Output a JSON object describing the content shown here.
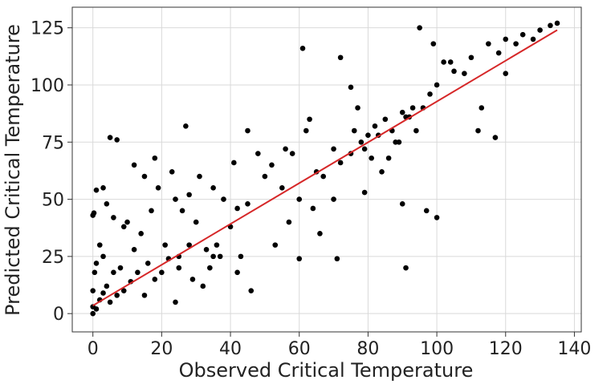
{
  "chart_data": {
    "type": "scatter",
    "title": "",
    "xlabel": "Observed Critical Temperature",
    "ylabel": "Predicted Critical Temperature",
    "xlim": [
      -6,
      142
    ],
    "ylim": [
      -8,
      134
    ],
    "xticks": [
      0,
      20,
      40,
      60,
      80,
      100,
      120,
      140
    ],
    "yticks": [
      0,
      25,
      50,
      75,
      100,
      125
    ],
    "grid": true,
    "legend": "none",
    "colors": {
      "points": "#000000",
      "fit_line": "#d62728",
      "grid": "#d9d9d9",
      "frame": "#333333"
    },
    "series": [
      {
        "x": [
          0,
          0,
          1,
          0.5,
          2,
          3,
          4,
          5,
          7,
          9,
          11,
          1,
          3,
          6,
          2,
          0,
          1,
          4,
          8,
          10,
          12,
          14,
          16,
          18,
          20,
          22,
          25,
          28,
          15,
          17,
          19,
          21,
          23,
          26,
          30,
          33,
          36,
          40,
          9,
          13,
          24,
          27,
          31,
          35,
          38,
          42,
          45,
          50,
          5,
          15,
          25,
          35,
          45,
          52,
          58,
          62,
          55,
          48,
          60,
          65,
          70,
          67,
          72,
          75,
          78,
          80,
          82,
          85,
          87,
          90,
          92,
          88,
          76,
          84,
          86,
          89,
          91,
          93,
          79,
          83,
          81,
          77,
          94,
          96,
          98,
          100,
          102,
          105,
          108,
          110,
          115,
          118,
          120,
          123,
          125,
          128,
          130,
          133,
          135,
          120,
          112,
          117,
          113,
          104,
          99,
          95,
          61,
          72,
          75,
          60,
          100,
          97,
          79,
          90,
          91,
          53,
          57,
          64,
          66,
          70,
          71,
          46,
          42,
          43,
          37,
          34,
          32,
          29,
          24,
          7,
          0,
          0.3,
          3,
          6,
          12,
          18,
          28,
          41,
          56,
          63
        ],
        "y": [
          3,
          10,
          2,
          18,
          6,
          9,
          12,
          5,
          8,
          10,
          14,
          22,
          25,
          18,
          30,
          43,
          54,
          48,
          20,
          40,
          28,
          35,
          22,
          15,
          18,
          24,
          25,
          30,
          60,
          45,
          55,
          30,
          62,
          45,
          40,
          28,
          30,
          38,
          38,
          18,
          50,
          82,
          60,
          55,
          50,
          46,
          80,
          60,
          77,
          8,
          20,
          25,
          48,
          65,
          70,
          80,
          55,
          70,
          50,
          62,
          72,
          60,
          66,
          70,
          75,
          78,
          82,
          85,
          80,
          88,
          86,
          75,
          80,
          62,
          68,
          75,
          86,
          90,
          72,
          78,
          68,
          90,
          80,
          90,
          96,
          100,
          110,
          106,
          105,
          112,
          118,
          114,
          120,
          118,
          122,
          120,
          124,
          126,
          127,
          105,
          80,
          77,
          90,
          110,
          118,
          125,
          116,
          112,
          99,
          24,
          42,
          45,
          53,
          48,
          20,
          30,
          40,
          46,
          35,
          50,
          24,
          10,
          18,
          25,
          25,
          20,
          12,
          15,
          5,
          76,
          0,
          44,
          55,
          42,
          65,
          68,
          52,
          66,
          72,
          85
        ]
      }
    ],
    "fit_line": {
      "x": [
        0,
        135
      ],
      "y": [
        3.5,
        124
      ]
    }
  }
}
